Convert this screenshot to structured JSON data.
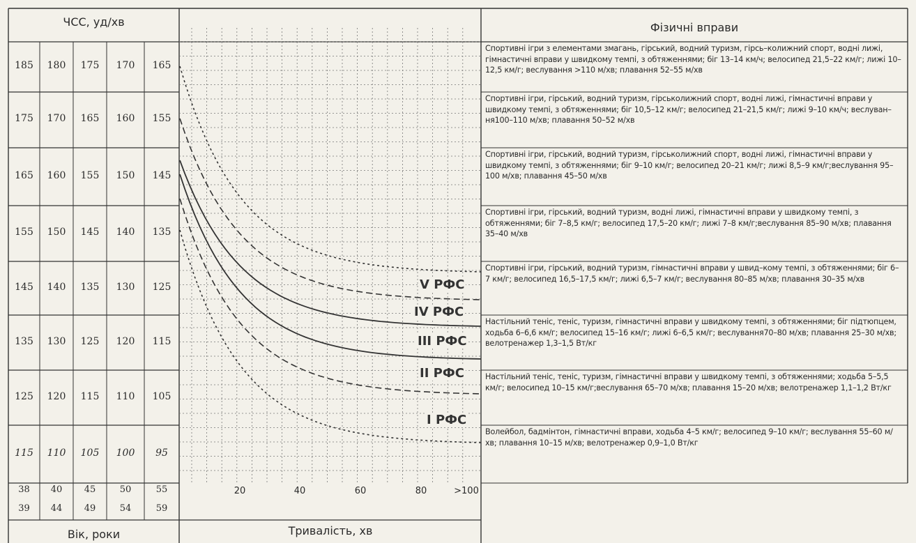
{
  "chart_data": {
    "type": "line",
    "title": "",
    "xlabel": "Тривалість, хв",
    "x_ticks": [
      "20",
      "40",
      "60",
      "80",
      ">100"
    ],
    "xlim": [
      0,
      100
    ],
    "hr_header": "ЧСС, уд/хв",
    "age_header": "Вік, роки",
    "exercise_header": "Фізичні вправи",
    "age_groups": [
      {
        "from": "38",
        "to": "39"
      },
      {
        "from": "40",
        "to": "44"
      },
      {
        "from": "45",
        "to": "49"
      },
      {
        "from": "50",
        "to": "54"
      },
      {
        "from": "55",
        "to": "59"
      }
    ],
    "hr_rows": [
      [
        "185",
        "180",
        "175",
        "170",
        "165"
      ],
      [
        "175",
        "170",
        "165",
        "160",
        "155"
      ],
      [
        "165",
        "160",
        "155",
        "150",
        "145"
      ],
      [
        "155",
        "150",
        "145",
        "140",
        "135"
      ],
      [
        "145",
        "140",
        "135",
        "130",
        "125"
      ],
      [
        "135",
        "130",
        "125",
        "120",
        "115"
      ],
      [
        "125",
        "120",
        "115",
        "110",
        "105"
      ],
      [
        "115",
        "110",
        "105",
        "100",
        "95"
      ]
    ],
    "exercises": [
      "Спортивні ігри з елементами змагань, гірський, водний туризм, гірсь–колижний спорт, водні лижі, гімнастичні вправи у швидкому темпі, з обтяженнями; біг 13–14 км/ч; велосипед 21,5–22 км/г; лижі 10–12,5 км/г; веслування >110 м/хв; плавання 52–55 м/хв",
      "Спортивні ігри, гірський, водний туризм, гірськолижний спорт, водні лижі, гімнастичні вправи у швидкому темпі, з обтяженнями; біг 10,5–12 км/г; велосипед 21–21,5 км/г; лижі 9–10 км/ч; веслуван–ня100–110 м/хв; плавання 50–52 м/хв",
      "Спортивні ігри, гірський, водний туризм, гірськолижний спорт, водні лижі, гімнастичні вправи у швидкому темпі, з обтяженнями; біг 9–10 км/г; велосипед 20–21 км/г; лижі 8,5–9 км/г;веслування 95–100 м/хв; плавання 45–50 м/хв",
      "Спортивні ігри, гірський, водний туризм, водні лижі, гімнастичні вправи у швидкому темпі, з обтяженнями; біг 7–8,5 км/г; велосипед 17,5–20 км/г; лижі 7–8 км/г;веслування 85–90 м/хв; плавання 35–40 м/хв",
      "Спортивні ігри, гірський, водний туризм, гімнастичні вправи у швид–кому темпі, з обтяженнями; біг 6–7 км/г; велосипед 16,5–17,5 км/г; лижі 6,5–7 км/г; веслування 80–85 м/хв; плавання 30–35 м/хв",
      "Настільний теніс, теніс, туризм, гімнастичні вправи у швидкому темпі, з обтяженнями; біг підтюпцем, ходьба 6–6,6 км/г; велосипед 15–16 км/г; лижі 6–6,5 км/г; веслування70–80 м/хв; плавання 25–30 м/хв; велотренажер 1,3–1,5 Вт/кг",
      "Настільний теніс, теніс, туризм, гімнастичні вправи у швидкому темпі, з обтяженнями; ходьба 5–5,5 км/г; велосипед 10–15 км/г;веслування 65–70 м/хв; плавання 15–20 м/хв; велотренажер 1,1–1,2 Вт/кг",
      "Волейбол, бадмінтон, гімнастичні вправи, ходьба 4–5 км/г; велосипед 9–10 км/г; веслування 55–60 м/хв; плавання 10–15 м/хв; велотренажер 0,9–1,0 Вт/кг"
    ],
    "zones": [
      {
        "label": "V РФС",
        "row": 4
      },
      {
        "label": "IV РФС",
        "row": 5
      },
      {
        "label": "III РФС",
        "row": 5
      },
      {
        "label": "II РФС",
        "row": 6
      },
      {
        "label": "I РФС",
        "row": 7
      }
    ],
    "series": [
      {
        "style": "dotted",
        "end_label": "V РФС"
      },
      {
        "style": "dashed",
        "end_label": "IV РФС"
      },
      {
        "style": "solid",
        "end_label": "III РФС"
      },
      {
        "style": "solid",
        "end_label": "II РФС"
      },
      {
        "style": "dashed",
        "end_label": "I РФС"
      },
      {
        "style": "dotted",
        "end_label": ""
      }
    ],
    "grid": true
  }
}
